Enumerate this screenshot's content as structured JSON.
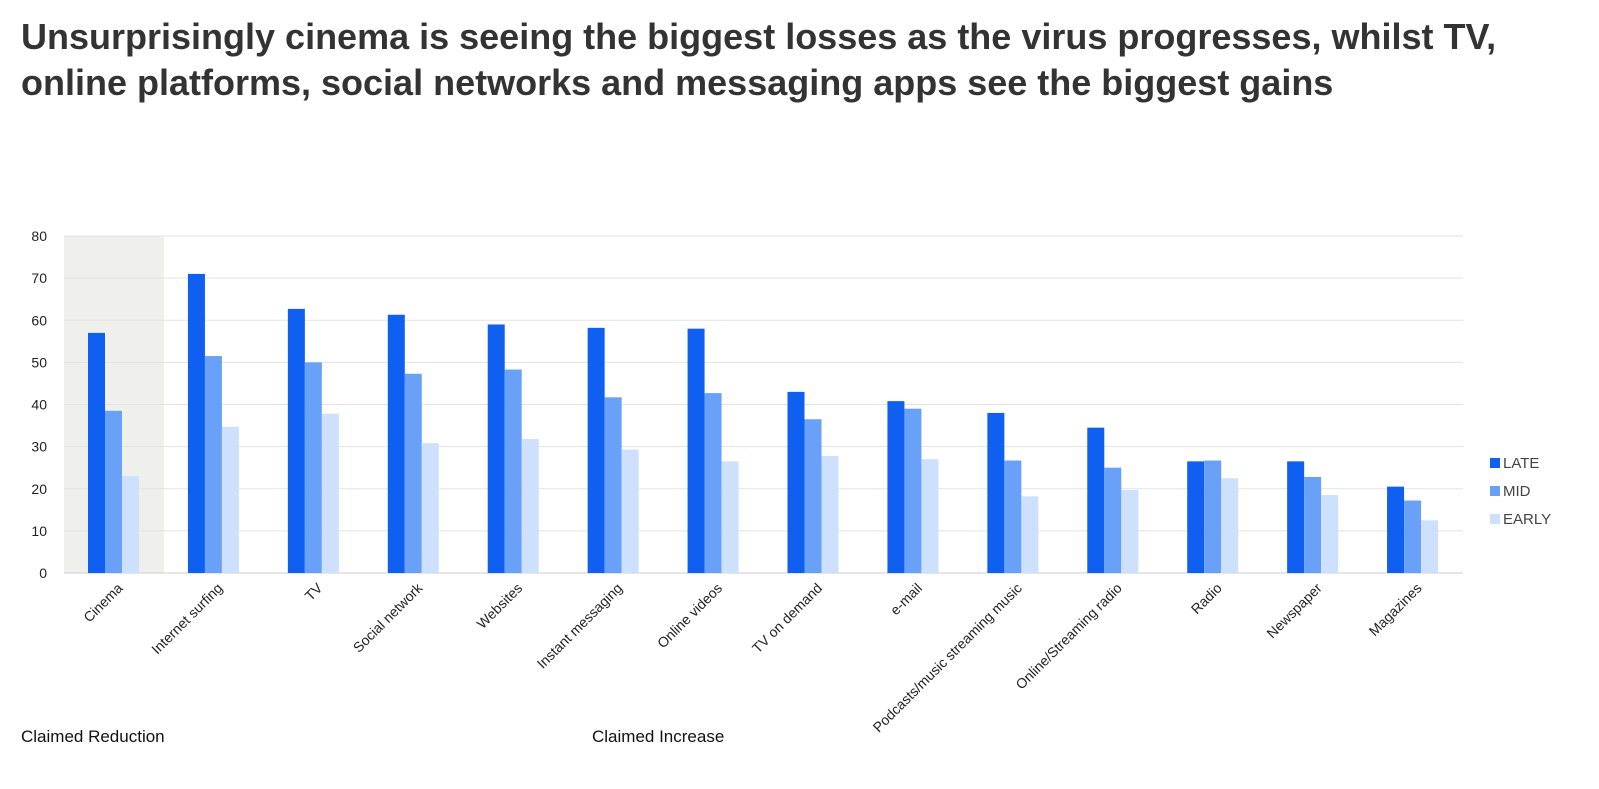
{
  "chart_data": {
    "type": "bar",
    "title": "Unsurprisingly cinema is seeing the biggest losses as the virus progresses, whilst TV, online platforms, social networks and messaging apps see the biggest gains",
    "xlabel": "",
    "ylabel": "",
    "ylim": [
      0,
      80
    ],
    "yticks": [
      0,
      10,
      20,
      30,
      40,
      50,
      60,
      70,
      80
    ],
    "grid": true,
    "legend_position": "right",
    "categories": [
      "Cinema",
      "Internet surfing",
      "TV",
      "Social network",
      "Websites",
      "Instant messaging",
      "Online videos",
      "TV on demand",
      "e-mail",
      "Podcasts/music streaming music",
      "Online/Streaming radio",
      "Radio",
      "Newspaper",
      "Magazines"
    ],
    "series": [
      {
        "name": "LATE",
        "color": "#0f5ff0",
        "values": [
          57,
          71,
          62.7,
          61.3,
          59,
          58.2,
          58,
          43,
          40.8,
          38,
          34.5,
          26.5,
          26.5,
          20.5
        ]
      },
      {
        "name": "MID",
        "color": "#6aa1f8",
        "values": [
          38.5,
          51.5,
          50,
          47.3,
          48.3,
          41.7,
          42.7,
          36.5,
          39,
          26.7,
          25,
          26.7,
          22.8,
          17.2
        ]
      },
      {
        "name": "EARLY",
        "color": "#cde0fd",
        "values": [
          23,
          34.7,
          37.8,
          30.8,
          31.8,
          29.3,
          26.5,
          27.8,
          27,
          18.2,
          19.7,
          22.5,
          18.5,
          12.5
        ]
      }
    ],
    "group_labels": [
      "Claimed Reduction",
      "Claimed Increase"
    ],
    "highlight_category": "Cinema",
    "highlight_color": "#efefec",
    "grid_color": "#e3e3e3",
    "axis_color": "#cccccc"
  }
}
